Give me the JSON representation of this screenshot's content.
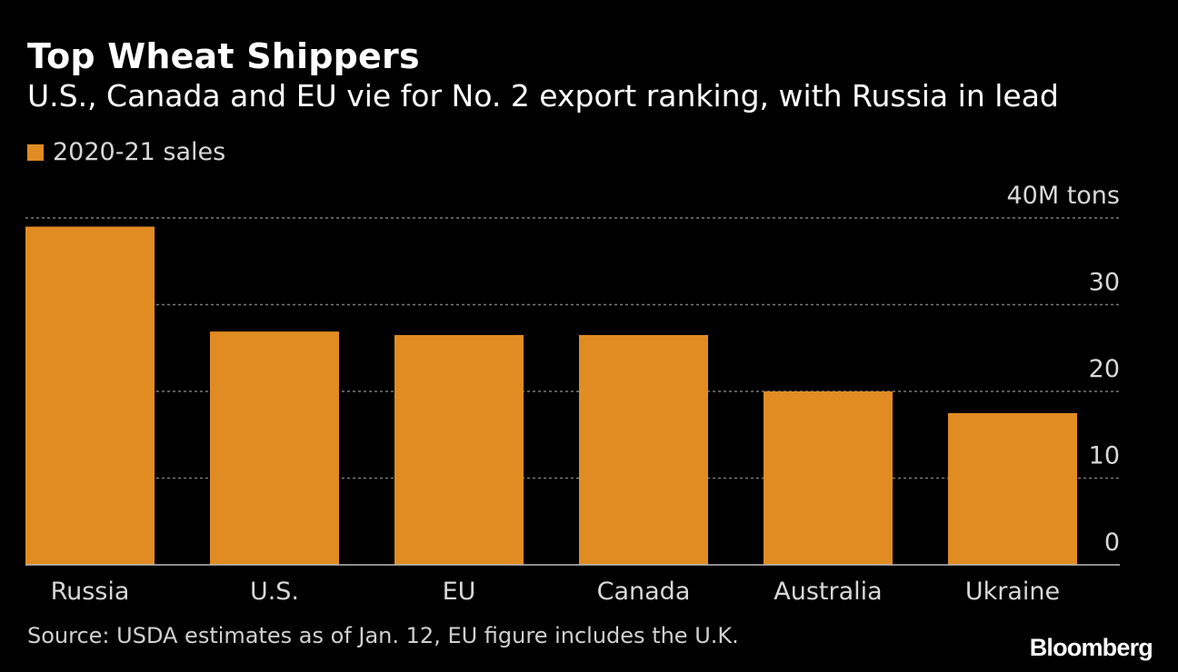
{
  "header": {
    "title": "Top Wheat Shippers",
    "subtitle": "U.S., Canada and EU vie for No. 2 export ranking, with Russia in lead"
  },
  "legend": {
    "label": "2020-21 sales"
  },
  "footer": {
    "source": "Source: USDA estimates as of Jan. 12, EU figure includes the U.K.",
    "logo": "Bloomberg"
  },
  "colors": {
    "bar": "#e08c23",
    "background": "#000000",
    "grid": "#7a7a7a",
    "axis_text": "#d8d8d8"
  },
  "chart_data": {
    "type": "bar",
    "title": "Top Wheat Shippers",
    "subtitle": "U.S., Canada and EU vie for No. 2 export ranking, with Russia in lead",
    "xlabel": "",
    "ylabel": "",
    "unit_label": "40M tons",
    "categories": [
      "Russia",
      "U.S.",
      "EU",
      "Canada",
      "Australia",
      "Ukraine"
    ],
    "series": [
      {
        "name": "2020-21 sales",
        "values": [
          39,
          26.9,
          26.5,
          26.5,
          20,
          17.5
        ]
      }
    ],
    "ylim": [
      0,
      40
    ],
    "yticks": [
      0,
      10,
      20,
      30,
      40
    ],
    "ytick_labels": [
      "0",
      "10",
      "20",
      "30",
      "40M tons"
    ],
    "grid": true,
    "legend_position": "top-left",
    "yaxis_position": "right"
  }
}
